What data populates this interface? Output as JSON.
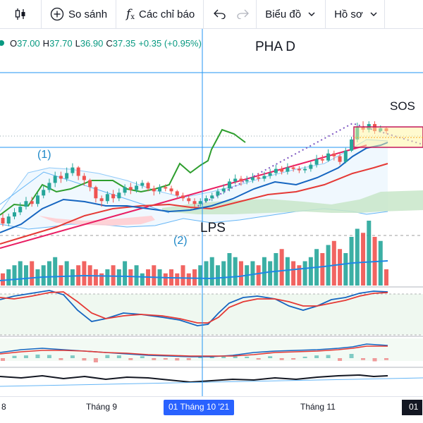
{
  "toolbar": {
    "compare_label": "So sánh",
    "indicators_label": "Các chỉ báo",
    "chart_menu_label": "Biểu đồ",
    "profile_label": "Hồ sơ"
  },
  "legend": {
    "o_key": "O",
    "o_val": "37.00",
    "h_key": "H",
    "h_val": "37.70",
    "l_key": "L",
    "l_val": "36.90",
    "c_key": "C",
    "c_val": "37.35",
    "change": "+0.35 (+0.95%)"
  },
  "annotations": {
    "phase": "PHA D",
    "sos": "SOS",
    "lps": "LPS",
    "point1": "(1)",
    "point2": "(2)"
  },
  "time_axis": {
    "left_partial": "8",
    "sep": "Tháng 9",
    "oct_highlight": "01 Tháng 10 '21",
    "nov": "Tháng 11",
    "right_partial": "01"
  },
  "colors": {
    "up": "#26a69a",
    "down": "#ef5350",
    "ema_fast": "#2962ff",
    "ema_slow": "#e53935",
    "trend": "#e91e63",
    "lagging": "#2e9e2e",
    "cursor": "#2196f3",
    "dotted": "#7e57c2"
  },
  "chart_data": {
    "type": "candlestick",
    "last_candle": {
      "open": 37.0,
      "high": 37.7,
      "low": 36.9,
      "close": 37.35,
      "change": 0.35,
      "change_pct": 0.95
    },
    "x_ticks": [
      "Tháng 9",
      "01 Tháng 10 '21",
      "Tháng 11"
    ],
    "candles": [
      [
        0.3,
        0.26,
        0.33,
        0.24
      ],
      [
        0.26,
        0.31,
        0.33,
        0.24
      ],
      [
        0.31,
        0.34,
        0.37,
        0.29
      ],
      [
        0.34,
        0.38,
        0.41,
        0.32
      ],
      [
        0.38,
        0.42,
        0.45,
        0.36
      ],
      [
        0.42,
        0.4,
        0.45,
        0.38
      ],
      [
        0.4,
        0.46,
        0.48,
        0.38
      ],
      [
        0.46,
        0.5,
        0.53,
        0.44
      ],
      [
        0.5,
        0.55,
        0.58,
        0.48
      ],
      [
        0.55,
        0.6,
        0.63,
        0.52
      ],
      [
        0.6,
        0.58,
        0.63,
        0.55
      ],
      [
        0.58,
        0.62,
        0.66,
        0.56
      ],
      [
        0.62,
        0.66,
        0.69,
        0.6
      ],
      [
        0.66,
        0.6,
        0.67,
        0.57
      ],
      [
        0.6,
        0.57,
        0.62,
        0.53
      ],
      [
        0.57,
        0.52,
        0.58,
        0.49
      ],
      [
        0.52,
        0.44,
        0.53,
        0.41
      ],
      [
        0.44,
        0.42,
        0.46,
        0.38
      ],
      [
        0.42,
        0.47,
        0.49,
        0.4
      ],
      [
        0.47,
        0.44,
        0.5,
        0.41
      ],
      [
        0.44,
        0.48,
        0.51,
        0.42
      ],
      [
        0.48,
        0.52,
        0.54,
        0.46
      ],
      [
        0.52,
        0.5,
        0.55,
        0.47
      ],
      [
        0.5,
        0.53,
        0.56,
        0.48
      ],
      [
        0.53,
        0.55,
        0.57,
        0.51
      ],
      [
        0.55,
        0.51,
        0.56,
        0.49
      ],
      [
        0.51,
        0.49,
        0.53,
        0.46
      ],
      [
        0.49,
        0.52,
        0.54,
        0.47
      ],
      [
        0.52,
        0.51,
        0.54,
        0.49
      ],
      [
        0.51,
        0.49,
        0.53,
        0.47
      ],
      [
        0.49,
        0.46,
        0.5,
        0.44
      ],
      [
        0.46,
        0.44,
        0.48,
        0.42
      ],
      [
        0.44,
        0.42,
        0.46,
        0.4
      ],
      [
        0.42,
        0.4,
        0.44,
        0.38
      ],
      [
        0.4,
        0.42,
        0.44,
        0.38
      ],
      [
        0.42,
        0.44,
        0.46,
        0.41
      ],
      [
        0.44,
        0.46,
        0.48,
        0.42
      ],
      [
        0.46,
        0.49,
        0.51,
        0.44
      ],
      [
        0.49,
        0.51,
        0.54,
        0.47
      ],
      [
        0.51,
        0.56,
        0.58,
        0.49
      ],
      [
        0.56,
        0.58,
        0.61,
        0.54
      ],
      [
        0.58,
        0.56,
        0.6,
        0.53
      ],
      [
        0.56,
        0.57,
        0.6,
        0.54
      ],
      [
        0.57,
        0.59,
        0.62,
        0.55
      ],
      [
        0.59,
        0.58,
        0.62,
        0.56
      ],
      [
        0.58,
        0.6,
        0.63,
        0.56
      ],
      [
        0.6,
        0.62,
        0.65,
        0.58
      ],
      [
        0.62,
        0.65,
        0.68,
        0.6
      ],
      [
        0.65,
        0.63,
        0.67,
        0.61
      ],
      [
        0.63,
        0.66,
        0.69,
        0.61
      ],
      [
        0.66,
        0.65,
        0.68,
        0.63
      ],
      [
        0.65,
        0.64,
        0.67,
        0.62
      ],
      [
        0.64,
        0.65,
        0.67,
        0.62
      ],
      [
        0.65,
        0.68,
        0.7,
        0.63
      ],
      [
        0.68,
        0.72,
        0.75,
        0.66
      ],
      [
        0.72,
        0.71,
        0.75,
        0.69
      ],
      [
        0.71,
        0.76,
        0.79,
        0.7
      ],
      [
        0.76,
        0.74,
        0.78,
        0.71
      ],
      [
        0.74,
        0.7,
        0.76,
        0.68
      ],
      [
        0.7,
        0.78,
        0.8,
        0.69
      ],
      [
        0.78,
        0.86,
        0.88,
        0.77
      ],
      [
        0.86,
        0.95,
        0.98,
        0.84
      ],
      [
        0.95,
        0.93,
        0.99,
        0.91
      ],
      [
        0.93,
        0.97,
        0.99,
        0.91
      ],
      [
        0.97,
        0.92,
        0.99,
        0.9
      ],
      [
        0.92,
        0.94,
        0.96,
        0.91
      ],
      [
        0.94,
        0.92,
        0.95,
        0.9
      ]
    ],
    "volume": [
      3,
      4,
      5,
      6,
      5,
      6,
      4,
      5,
      6,
      7,
      5,
      6,
      4,
      5,
      6,
      5,
      4,
      3,
      4,
      5,
      4,
      6,
      4,
      5,
      3,
      4,
      5,
      4,
      3,
      4,
      3,
      5,
      3,
      4,
      5,
      6,
      7,
      5,
      6,
      8,
      7,
      6,
      5,
      6,
      5,
      7,
      6,
      8,
      9,
      7,
      6,
      5,
      6,
      7,
      9,
      8,
      10,
      11,
      9,
      8,
      12,
      14,
      13,
      16,
      12,
      11,
      4
    ]
  }
}
